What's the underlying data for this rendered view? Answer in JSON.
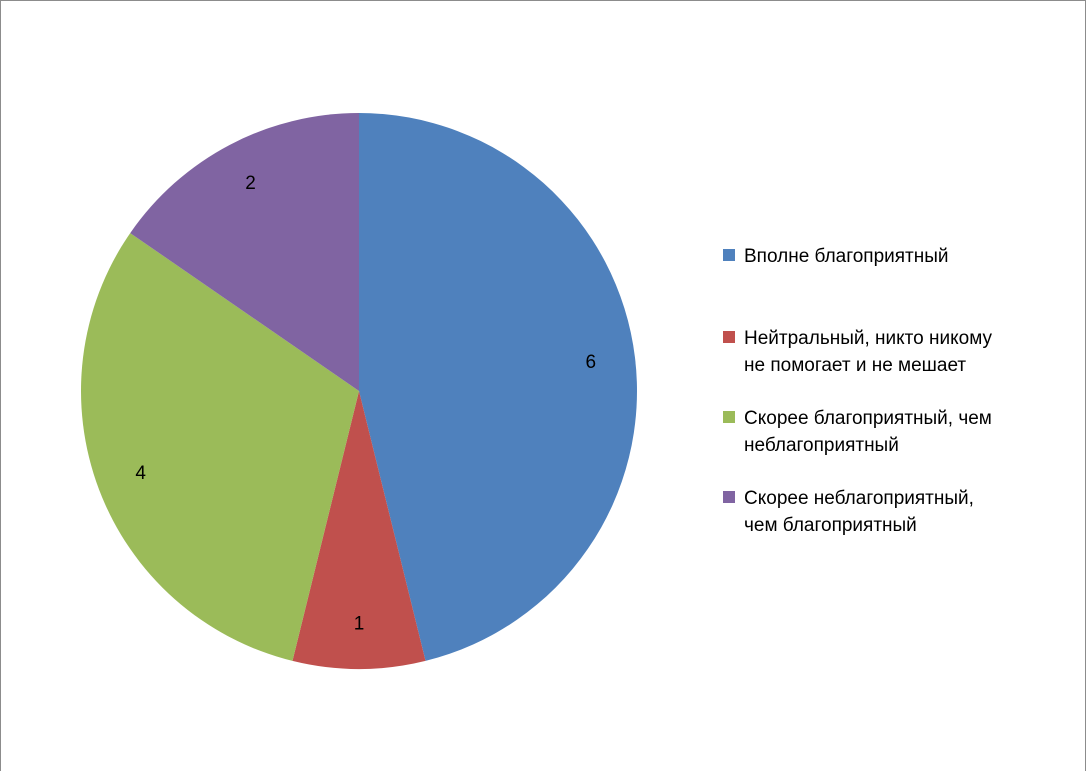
{
  "chart_data": {
    "type": "pie",
    "categories": [
      "Вполне благоприятный",
      "Нейтральный, никто  никому не помогает и не мешает",
      "Скорее благоприятный, чем неблагоприятный",
      "Скорее неблагоприятный, чем благоприятный"
    ],
    "values": [
      6,
      1,
      4,
      2
    ],
    "data_labels": [
      "6",
      "1",
      "4",
      "2"
    ],
    "colors": [
      "#4f81bd",
      "#c0504d",
      "#9bbb59",
      "#8064a2"
    ],
    "start_angle": "12 o'clock",
    "direction": "clockwise",
    "legend_position": "right"
  },
  "legend": {
    "items": [
      {
        "label": "Вполне благоприятный",
        "color": "#4f81bd"
      },
      {
        "label": "Нейтральный, никто  никому\nне помогает и не мешает",
        "color": "#c0504d"
      },
      {
        "label": "Скорее благоприятный, чем\nнеблагоприятный",
        "color": "#9bbb59"
      },
      {
        "label": "Скорее неблагоприятный,\nчем благоприятный",
        "color": "#8064a2"
      }
    ]
  }
}
